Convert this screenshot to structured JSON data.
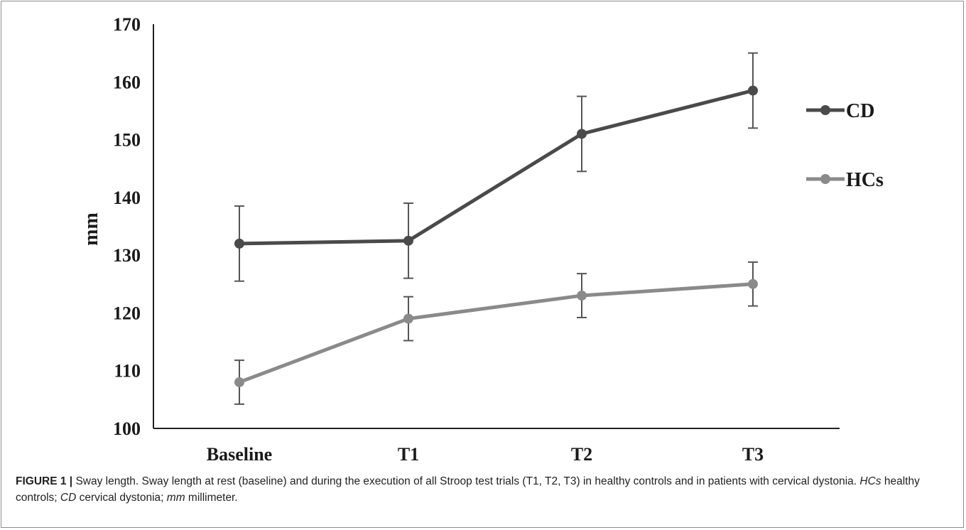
{
  "chart_data": {
    "type": "line",
    "categories": [
      "Baseline",
      "T1",
      "T2",
      "T3"
    ],
    "series": [
      {
        "name": "CD",
        "values": [
          132,
          132.5,
          151,
          158.5
        ],
        "errors": [
          6.5,
          6.5,
          6.5,
          6.5
        ],
        "color": "#4a4a4a"
      },
      {
        "name": "HCs",
        "values": [
          108,
          119,
          123,
          125
        ],
        "errors": [
          3.8,
          3.8,
          3.8,
          3.8
        ],
        "color": "#8a8a8a"
      }
    ],
    "title": "",
    "xlabel": "",
    "ylabel": "mm",
    "ylim": [
      100,
      170
    ],
    "yticks": [
      100,
      110,
      120,
      130,
      140,
      150,
      160,
      170
    ],
    "grid": false,
    "legend_position": "right"
  },
  "caption": {
    "label": "FIGURE 1 |",
    "text1": " Sway length. Sway length at rest (baseline) and during the execution of all Stroop test trials (T1, T2, T3) in healthy controls and in patients with cervical dystonia. ",
    "abbr1": "HCs",
    "text2": " healthy controls; ",
    "abbr2": "CD",
    "text3": " cervical dystonia; ",
    "abbr3": "mm",
    "text4": " millimeter."
  }
}
